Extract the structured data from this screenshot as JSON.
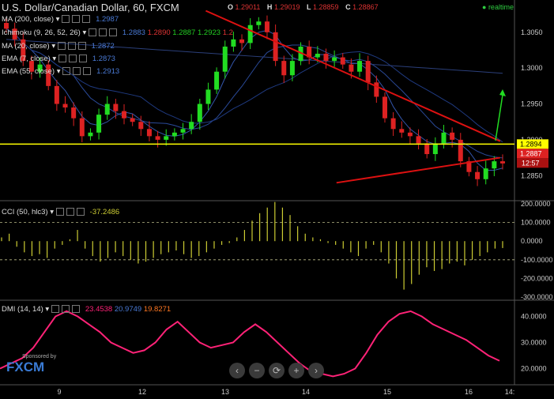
{
  "header": {
    "title": "U.S. Dollar/Canadian Dollar, 60, FXCM",
    "ohlc": [
      {
        "k": "O",
        "v": "1.29011"
      },
      {
        "k": "H",
        "v": "1.29019"
      },
      {
        "k": "L",
        "v": "1.28859"
      },
      {
        "k": "C",
        "v": "1.28867"
      }
    ],
    "realtime": "realtime"
  },
  "indicators": {
    "ma200": {
      "label": "MA (200, close)",
      "value": "1.2987"
    },
    "ichimoku": {
      "label": "Ichimoku (9, 26, 52, 26)",
      "values": [
        "1.2883",
        "1.2890",
        "1.2887",
        "1.2923",
        "1.2"
      ]
    },
    "ma20": {
      "label": "MA (20, close)",
      "value": "1.2872"
    },
    "ema7": {
      "label": "EMA (7, close)",
      "value": "1.2873"
    },
    "ema55": {
      "label": "EMA (55, close)",
      "value": "1.2913"
    },
    "cci": {
      "label": "CCI (50, hlc3)",
      "value": "-37.2486"
    },
    "dmi": {
      "label": "DMI (14, 14)",
      "values": [
        "23.4538",
        "20.9749",
        "19.8271"
      ]
    }
  },
  "badges": {
    "price1": "1.2894",
    "price2": "1.2887",
    "timer": "12:57"
  },
  "controls": {
    "prev": "‹",
    "zoom_out": "−",
    "reset": "⟳",
    "zoom_in": "+",
    "next": "›"
  },
  "logo": {
    "sponsored": "Sponsored by",
    "brand": "FXCM"
  },
  "colors": {
    "background": "#000000",
    "up": "#22dd22",
    "down": "#dd2222",
    "trendline": "#dd1111",
    "horizontal": "#ffff00",
    "cci": "#cccc33",
    "dmi": "#ff2277"
  },
  "chart_data": [
    {
      "type": "candlestick",
      "ylim": [
        1.2815,
        1.3095
      ],
      "ticks_y": [
        "1.3050",
        "1.3000",
        "1.2950",
        "1.2900",
        "1.2850"
      ],
      "tick_values": [
        1.305,
        1.3,
        1.295,
        1.29,
        1.285
      ],
      "x_labels": [
        "9",
        "12",
        "13",
        "14",
        "15",
        "16",
        "14:"
      ],
      "close_path": [
        1.3055,
        1.304,
        1.301,
        1.2995,
        1.3005,
        1.2975,
        1.295,
        1.2945,
        1.293,
        1.2905,
        1.291,
        1.2935,
        1.295,
        1.294,
        1.293,
        1.2925,
        1.2915,
        1.2905,
        1.29,
        1.2905,
        1.291,
        1.2915,
        1.2925,
        1.295,
        1.297,
        1.2995,
        1.303,
        1.304,
        1.3035,
        1.306,
        1.3065,
        1.305,
        1.301,
        1.299,
        1.301,
        1.303,
        1.3015,
        1.302,
        1.301,
        1.3015,
        1.3005,
        1.2995,
        1.301,
        1.298,
        1.296,
        1.293,
        1.2915,
        1.291,
        1.2905,
        1.2895,
        1.288,
        1.2895,
        1.291,
        1.29,
        1.287,
        1.2855,
        1.2845,
        1.286,
        1.287,
        1.2867
      ],
      "horizontal_line": 1.2894,
      "upper_trendline": [
        [
          0.4,
          1.308
        ],
        [
          0.88,
          1.2898
        ]
      ],
      "lower_trendline": [
        [
          0.78,
          1.284
        ],
        [
          0.88,
          1.2875
        ]
      ]
    },
    {
      "type": "histogram",
      "label": "CCI (50, hlc3)",
      "ylim": [
        -300,
        200
      ],
      "ticks_y": [
        "200.0000",
        "100.0000",
        "0.0000",
        "-100.0000",
        "-200.0000",
        "-300.0000"
      ],
      "tick_values": [
        200,
        100,
        0,
        -100,
        -200,
        -300
      ],
      "levels": [
        100,
        -100
      ],
      "values": [
        20,
        40,
        -30,
        -60,
        -80,
        -70,
        -90,
        -40,
        -20,
        10,
        60,
        -40,
        -80,
        -110,
        -90,
        -60,
        -80,
        -100,
        -120,
        -110,
        -90,
        -70,
        -60,
        -50,
        -70,
        -90,
        -80,
        -60,
        -40,
        -20,
        -10,
        20,
        60,
        110,
        150,
        180,
        210,
        180,
        140,
        80,
        40,
        20,
        10,
        -10,
        -20,
        -40,
        -60,
        -80,
        -40,
        -20,
        -60,
        -120,
        -200,
        -260,
        -230,
        -180,
        -140,
        -160,
        -150,
        -120,
        -110,
        -130,
        -100,
        -80,
        -60,
        -40,
        -37
      ]
    },
    {
      "type": "line",
      "label": "DMI (14, 14)",
      "ylim": [
        15,
        45
      ],
      "ticks_y": [
        "40.0000",
        "30.0000",
        "20.0000"
      ],
      "tick_values": [
        40,
        30,
        20
      ],
      "values": [
        20,
        22,
        24,
        28,
        34,
        40,
        42,
        40,
        37,
        34,
        30,
        28,
        26,
        27,
        30,
        35,
        38,
        34,
        30,
        28,
        29,
        30,
        34,
        37,
        34,
        30,
        26,
        22,
        19,
        18,
        17,
        18,
        20,
        26,
        33,
        38,
        41,
        42,
        40,
        37,
        35,
        33,
        31,
        28,
        25,
        23
      ]
    }
  ]
}
